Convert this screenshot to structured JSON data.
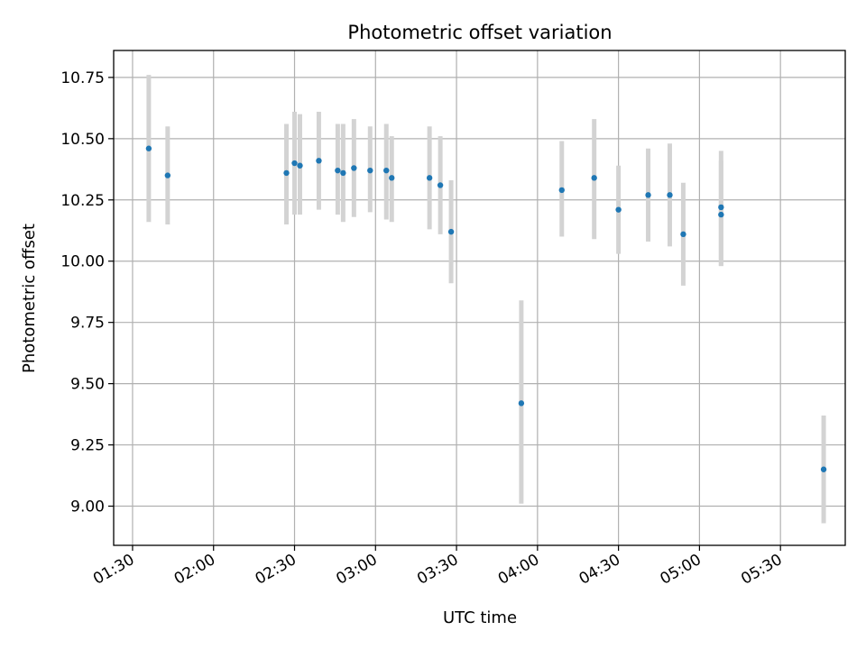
{
  "chart_data": {
    "type": "scatter",
    "title": "Photometric offset variation",
    "xlabel": "UTC time",
    "ylabel": "Photometric offset",
    "xlim": [
      "01:23",
      "05:54"
    ],
    "ylim": [
      8.84,
      10.86
    ],
    "grid": true,
    "x_ticks": [
      "01:30",
      "02:00",
      "02:30",
      "03:00",
      "03:30",
      "04:00",
      "04:30",
      "05:00",
      "05:30"
    ],
    "y_ticks": [
      9.0,
      9.25,
      9.5,
      9.75,
      10.0,
      10.25,
      10.5,
      10.75
    ],
    "y_tick_labels": [
      "9.00",
      "9.25",
      "9.50",
      "9.75",
      "10.00",
      "10.25",
      "10.50",
      "10.75"
    ],
    "colors": {
      "point": "#1f77b4",
      "errorbar": "#d3d3d3",
      "grid": "#b0b0b0"
    },
    "points": [
      {
        "x": "01:36",
        "y": 10.46,
        "yerr_low": 10.16,
        "yerr_high": 10.76
      },
      {
        "x": "01:43",
        "y": 10.35,
        "yerr_low": 10.15,
        "yerr_high": 10.55
      },
      {
        "x": "02:27",
        "y": 10.36,
        "yerr_low": 10.15,
        "yerr_high": 10.56
      },
      {
        "x": "02:30",
        "y": 10.4,
        "yerr_low": 10.19,
        "yerr_high": 10.61
      },
      {
        "x": "02:32",
        "y": 10.39,
        "yerr_low": 10.19,
        "yerr_high": 10.6
      },
      {
        "x": "02:39",
        "y": 10.41,
        "yerr_low": 10.21,
        "yerr_high": 10.61
      },
      {
        "x": "02:46",
        "y": 10.37,
        "yerr_low": 10.19,
        "yerr_high": 10.56
      },
      {
        "x": "02:48",
        "y": 10.36,
        "yerr_low": 10.16,
        "yerr_high": 10.56
      },
      {
        "x": "02:52",
        "y": 10.38,
        "yerr_low": 10.18,
        "yerr_high": 10.58
      },
      {
        "x": "02:58",
        "y": 10.37,
        "yerr_low": 10.2,
        "yerr_high": 10.55
      },
      {
        "x": "03:04",
        "y": 10.37,
        "yerr_low": 10.17,
        "yerr_high": 10.56
      },
      {
        "x": "03:06",
        "y": 10.34,
        "yerr_low": 10.16,
        "yerr_high": 10.51
      },
      {
        "x": "03:20",
        "y": 10.34,
        "yerr_low": 10.13,
        "yerr_high": 10.55
      },
      {
        "x": "03:24",
        "y": 10.31,
        "yerr_low": 10.11,
        "yerr_high": 10.51
      },
      {
        "x": "03:28",
        "y": 10.12,
        "yerr_low": 9.91,
        "yerr_high": 10.33
      },
      {
        "x": "03:54",
        "y": 9.42,
        "yerr_low": 9.01,
        "yerr_high": 9.84
      },
      {
        "x": "04:09",
        "y": 10.29,
        "yerr_low": 10.1,
        "yerr_high": 10.49
      },
      {
        "x": "04:21",
        "y": 10.34,
        "yerr_low": 10.09,
        "yerr_high": 10.58
      },
      {
        "x": "04:30",
        "y": 10.21,
        "yerr_low": 10.03,
        "yerr_high": 10.39
      },
      {
        "x": "04:41",
        "y": 10.27,
        "yerr_low": 10.08,
        "yerr_high": 10.46
      },
      {
        "x": "04:49",
        "y": 10.27,
        "yerr_low": 10.06,
        "yerr_high": 10.48
      },
      {
        "x": "04:54",
        "y": 10.11,
        "yerr_low": 9.9,
        "yerr_high": 10.32
      },
      {
        "x": "05:08",
        "y": 10.22,
        "yerr_low": 9.98,
        "yerr_high": 10.45
      },
      {
        "x": "05:08",
        "y": 10.19,
        "yerr_low": 9.98,
        "yerr_high": 10.41
      },
      {
        "x": "05:46",
        "y": 9.15,
        "yerr_low": 8.93,
        "yerr_high": 9.37
      }
    ]
  }
}
